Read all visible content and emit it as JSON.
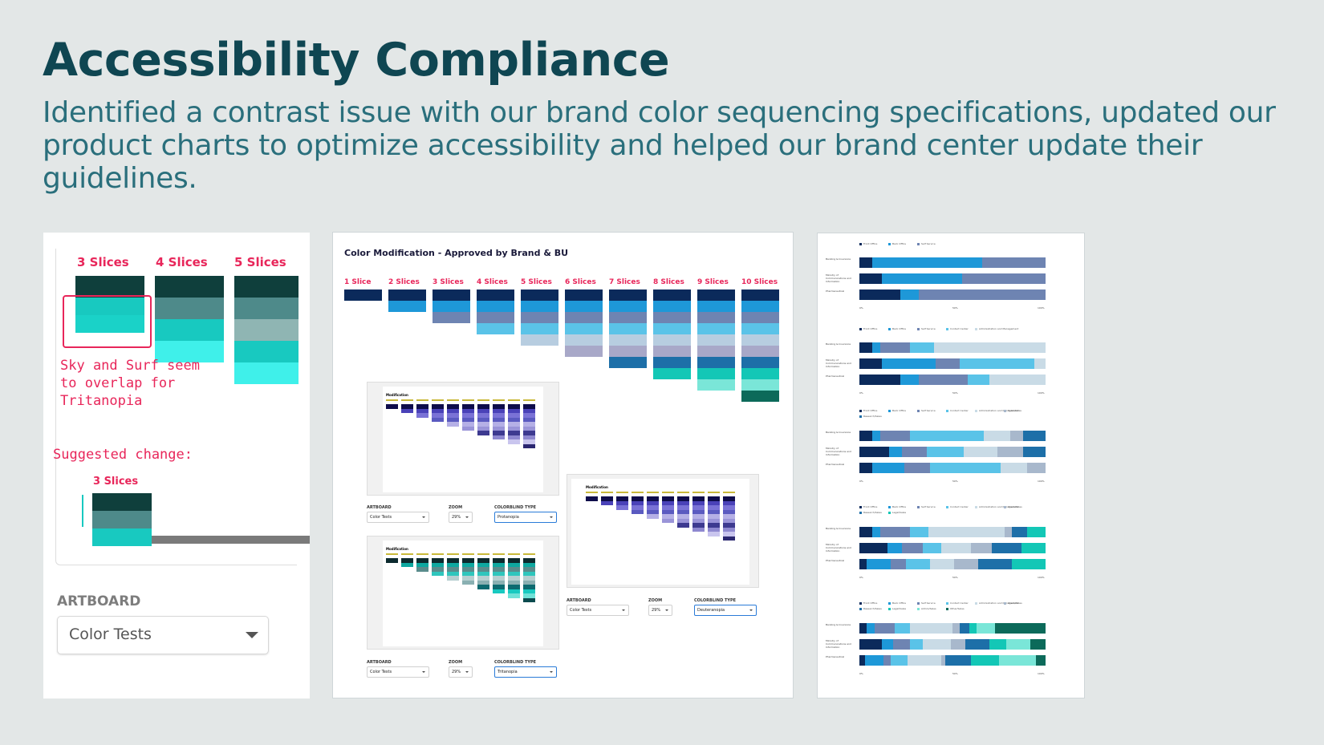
{
  "header": {
    "title": "Accessibility Compliance",
    "subtitle": "Identified a contrast issue with our brand color sequencing specifications, updated our product charts to optimize accessibility and helped our brand center update their guidelines."
  },
  "panel_left": {
    "slice_headers": [
      "3 Slices",
      "4 Slices",
      "5 Slices"
    ],
    "note": "Sky and Surf seem to overlap for Tritanopia",
    "suggested": "Suggested change:",
    "suggested_header": "3 Slices",
    "artboard_label": "ARTBOARD",
    "artboard_value": "Color Tests"
  },
  "panel_middle": {
    "title": "Color Modification - Approved by Brand & BU",
    "slice_headers": [
      "1 Slice",
      "2 Slices",
      "3 Slices",
      "4 Slices",
      "5 Slices",
      "6 Slices",
      "7 Slices",
      "8 Slices",
      "9 Slices",
      "10 Slices"
    ],
    "mini_title": "Modification",
    "controls": [
      {
        "artboard_label": "ARTBOARD",
        "artboard": "Color Tests",
        "zoom_label": "ZOOM",
        "zoom": "29%",
        "type_label": "COLORBLIND TYPE",
        "type": "Protanopia"
      },
      {
        "artboard_label": "ARTBOARD",
        "artboard": "Color Tests",
        "zoom_label": "ZOOM",
        "zoom": "29%",
        "type_label": "COLORBLIND TYPE",
        "type": "Deuteranopia"
      },
      {
        "artboard_label": "ARTBOARD",
        "artboard": "Color Tests",
        "zoom_label": "ZOOM",
        "zoom": "29%",
        "type_label": "COLORBLIND TYPE",
        "type": "Tritanopia"
      }
    ],
    "colors": [
      "#0b2a5b",
      "#1e98d8",
      "#6e84b2",
      "#5ac3e8",
      "#b7cde0",
      "#a8a8c8",
      "#1d6fa8",
      "#13c7b6",
      "#7ae6d8",
      "#0c6a5a"
    ]
  },
  "panel_right": {
    "row_labels": [
      "Banking & Insurance",
      "Ministry of Communications and Information",
      "Pharmaceutical"
    ],
    "axis_ticks": [
      "0%",
      "50%",
      "100%"
    ],
    "charts": [
      {
        "legend": [
          "Front Office",
          "Back Office",
          "Self Service"
        ],
        "rows": [
          [
            7,
            59,
            34
          ],
          [
            12,
            43,
            45
          ],
          [
            22,
            10,
            68
          ]
        ]
      },
      {
        "legend": [
          "Front Office",
          "Back Office",
          "Self Service",
          "Contact Center",
          "Administration and Management"
        ],
        "rows": [
          [
            7,
            4,
            16,
            13,
            60
          ],
          [
            12,
            29,
            13,
            40,
            6
          ],
          [
            22,
            10,
            26,
            12,
            30
          ]
        ]
      },
      {
        "legend": [
          "Front Office",
          "Back Office",
          "Self Service",
          "Contact Center",
          "Administration and Management",
          "Sales/Sales",
          "Research/Sales"
        ],
        "rows": [
          [
            7,
            4,
            16,
            40,
            14,
            7,
            12
          ],
          [
            16,
            7,
            13,
            20,
            18,
            14,
            12
          ],
          [
            7,
            17,
            14,
            38,
            14,
            10,
            0
          ]
        ]
      },
      {
        "legend": [
          "Front Office",
          "Back Office",
          "Self Service",
          "Contact Center",
          "Administration and Management",
          "Client/Sales",
          "Research/Sales",
          "Legal/Sales"
        ],
        "rows": [
          [
            7,
            4,
            16,
            10,
            41,
            4,
            8,
            10
          ],
          [
            15,
            8,
            11,
            10,
            16,
            11,
            16,
            13
          ],
          [
            4,
            13,
            8,
            13,
            13,
            13,
            18,
            18
          ]
        ]
      },
      {
        "legend": [
          "Front Office",
          "Back Office",
          "Self Service",
          "Contact Center",
          "Administration and Management",
          "Client/Sales",
          "Research/Sales",
          "Legal/Sales",
          "Admin/Sales",
          "Other/Sales"
        ],
        "rows": [
          [
            4,
            4,
            11,
            8,
            23,
            4,
            5,
            4,
            10,
            27
          ],
          [
            12,
            6,
            9,
            7,
            15,
            8,
            13,
            9,
            13,
            8
          ],
          [
            3,
            10,
            4,
            9,
            18,
            2,
            14,
            15,
            20,
            5
          ]
        ]
      }
    ]
  }
}
